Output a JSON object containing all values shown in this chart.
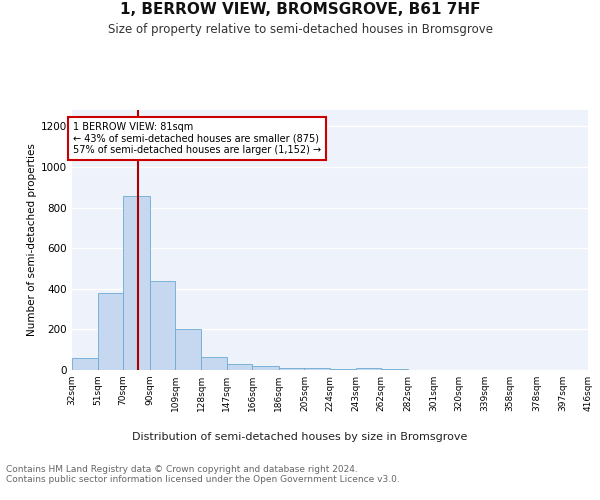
{
  "title": "1, BERROW VIEW, BROMSGROVE, B61 7HF",
  "subtitle": "Size of property relative to semi-detached houses in Bromsgrove",
  "xlabel": "Distribution of semi-detached houses by size in Bromsgrove",
  "ylabel": "Number of semi-detached properties",
  "bar_color": "#c5d8f0",
  "bar_edge_color": "#6aaad4",
  "bg_color": "#eef3fb",
  "grid_color": "#ffffff",
  "annotation_line_color": "#aa0000",
  "annotation_box_edge": "#cc0000",
  "annotation_text": "1 BERROW VIEW: 81sqm\n← 43% of semi-detached houses are smaller (875)\n57% of semi-detached houses are larger (1,152) →",
  "property_size": 81,
  "bins": [
    32,
    51,
    70,
    90,
    109,
    128,
    147,
    166,
    186,
    205,
    224,
    243,
    262,
    282,
    301,
    320,
    339,
    358,
    378,
    397,
    416
  ],
  "counts": [
    60,
    380,
    855,
    440,
    200,
    65,
    28,
    18,
    12,
    8,
    4,
    10,
    3,
    0,
    0,
    0,
    0,
    0,
    0,
    0
  ],
  "tick_labels": [
    "32sqm",
    "51sqm",
    "70sqm",
    "90sqm",
    "109sqm",
    "128sqm",
    "147sqm",
    "166sqm",
    "186sqm",
    "205sqm",
    "224sqm",
    "243sqm",
    "262sqm",
    "282sqm",
    "301sqm",
    "320sqm",
    "339sqm",
    "358sqm",
    "378sqm",
    "397sqm",
    "416sqm"
  ],
  "ylim": [
    0,
    1280
  ],
  "yticks": [
    0,
    200,
    400,
    600,
    800,
    1000,
    1200
  ],
  "footer_text": "Contains HM Land Registry data © Crown copyright and database right 2024.\nContains public sector information licensed under the Open Government Licence v3.0.",
  "title_fontsize": 11,
  "subtitle_fontsize": 8.5,
  "footer_fontsize": 6.5
}
